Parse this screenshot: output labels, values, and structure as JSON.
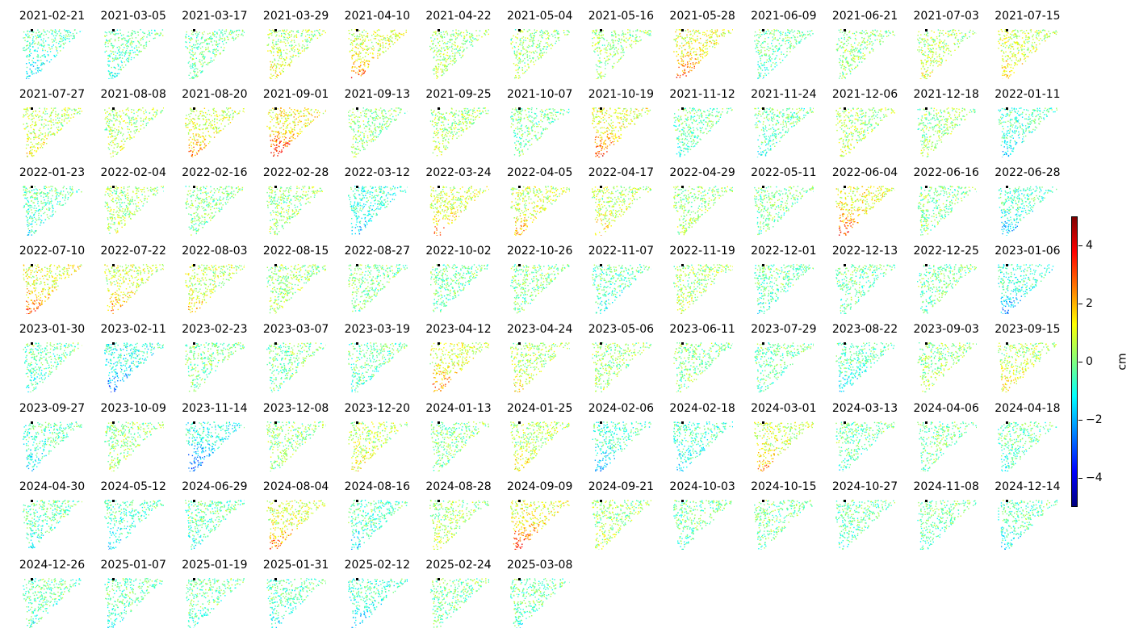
{
  "chart_data": {
    "type": "heatmap",
    "description_type": "small-multiples map grid",
    "dates": [
      "2021-02-21",
      "2021-03-05",
      "2021-03-17",
      "2021-03-29",
      "2021-04-10",
      "2021-04-22",
      "2021-05-04",
      "2021-05-16",
      "2021-05-28",
      "2021-06-09",
      "2021-06-21",
      "2021-07-03",
      "2021-07-15",
      "2021-07-27",
      "2021-08-08",
      "2021-08-20",
      "2021-09-01",
      "2021-09-13",
      "2021-09-25",
      "2021-10-07",
      "2021-10-19",
      "2021-11-12",
      "2021-11-24",
      "2021-12-06",
      "2021-12-18",
      "2022-01-11",
      "2022-01-23",
      "2022-02-04",
      "2022-02-16",
      "2022-02-28",
      "2022-03-12",
      "2022-03-24",
      "2022-04-05",
      "2022-04-17",
      "2022-04-29",
      "2022-05-11",
      "2022-06-04",
      "2022-06-16",
      "2022-06-28",
      "2022-07-10",
      "2022-07-22",
      "2022-08-03",
      "2022-08-15",
      "2022-08-27",
      "2022-10-02",
      "2022-10-26",
      "2022-11-07",
      "2022-11-19",
      "2022-12-01",
      "2022-12-13",
      "2022-12-25",
      "2023-01-06",
      "2023-01-30",
      "2023-02-11",
      "2023-02-23",
      "2023-03-07",
      "2023-03-19",
      "2023-04-12",
      "2023-04-24",
      "2023-05-06",
      "2023-06-11",
      "2023-07-29",
      "2023-08-22",
      "2023-09-03",
      "2023-09-15",
      "2023-09-27",
      "2023-10-09",
      "2023-11-14",
      "2023-12-08",
      "2023-12-20",
      "2024-01-13",
      "2024-01-25",
      "2024-02-06",
      "2024-02-18",
      "2024-03-01",
      "2024-03-13",
      "2024-04-06",
      "2024-04-18",
      "2024-04-30",
      "2024-05-12",
      "2024-06-29",
      "2024-08-04",
      "2024-08-16",
      "2024-08-28",
      "2024-09-09",
      "2024-09-21",
      "2024-10-03",
      "2024-10-15",
      "2024-10-27",
      "2024-11-08",
      "2024-12-14",
      "2024-12-26",
      "2025-01-07",
      "2025-01-19",
      "2025-01-31",
      "2025-02-12",
      "2025-02-24",
      "2025-03-08"
    ],
    "mean_displacement_cm": [
      -1.5,
      -0.8,
      -0.3,
      1.2,
      2.5,
      0.6,
      0.3,
      0.4,
      2.8,
      -0.6,
      0.2,
      1.0,
      1.8,
      1.3,
      0.8,
      2.2,
      3.5,
      0.2,
      0.8,
      -0.2,
      3.0,
      -0.6,
      -0.8,
      0.8,
      0.4,
      -1.5,
      -1.0,
      0.6,
      -0.2,
      0.4,
      -1.8,
      2.3,
      2.0,
      1.5,
      0.5,
      -0.3,
      3.0,
      0.0,
      -1.6,
      2.8,
      2.2,
      1.6,
      0.4,
      -0.2,
      -0.5,
      -0.2,
      -1.0,
      0.8,
      -0.8,
      -0.5,
      -0.5,
      -2.0,
      -0.8,
      -2.5,
      -0.2,
      -0.3,
      -0.6,
      2.5,
      1.2,
      0.4,
      0.0,
      -0.5,
      -1.2,
      0.5,
      1.3,
      -1.5,
      0.4,
      -2.8,
      0.3,
      1.2,
      -0.2,
      1.3,
      -1.8,
      -1.5,
      2.0,
      -0.6,
      -0.4,
      -0.8,
      -1.0,
      -1.5,
      -0.8,
      2.5,
      -1.3,
      0.8,
      3.2,
      0.6,
      -0.5,
      -0.2,
      -0.6,
      -0.5,
      -1.2,
      -0.8,
      -0.8,
      -0.5,
      -1.3,
      -2.0,
      -0.3,
      -0.6
    ],
    "zlim": [
      -5,
      5
    ],
    "colormap": "jet",
    "colorbar": {
      "label": "cm",
      "ticks": [
        4,
        2,
        0,
        -2,
        -4
      ],
      "tick_labels": [
        "4",
        "2",
        "0",
        "−2",
        "−4"
      ]
    },
    "grid": {
      "columns": 13,
      "rows": 8
    }
  }
}
